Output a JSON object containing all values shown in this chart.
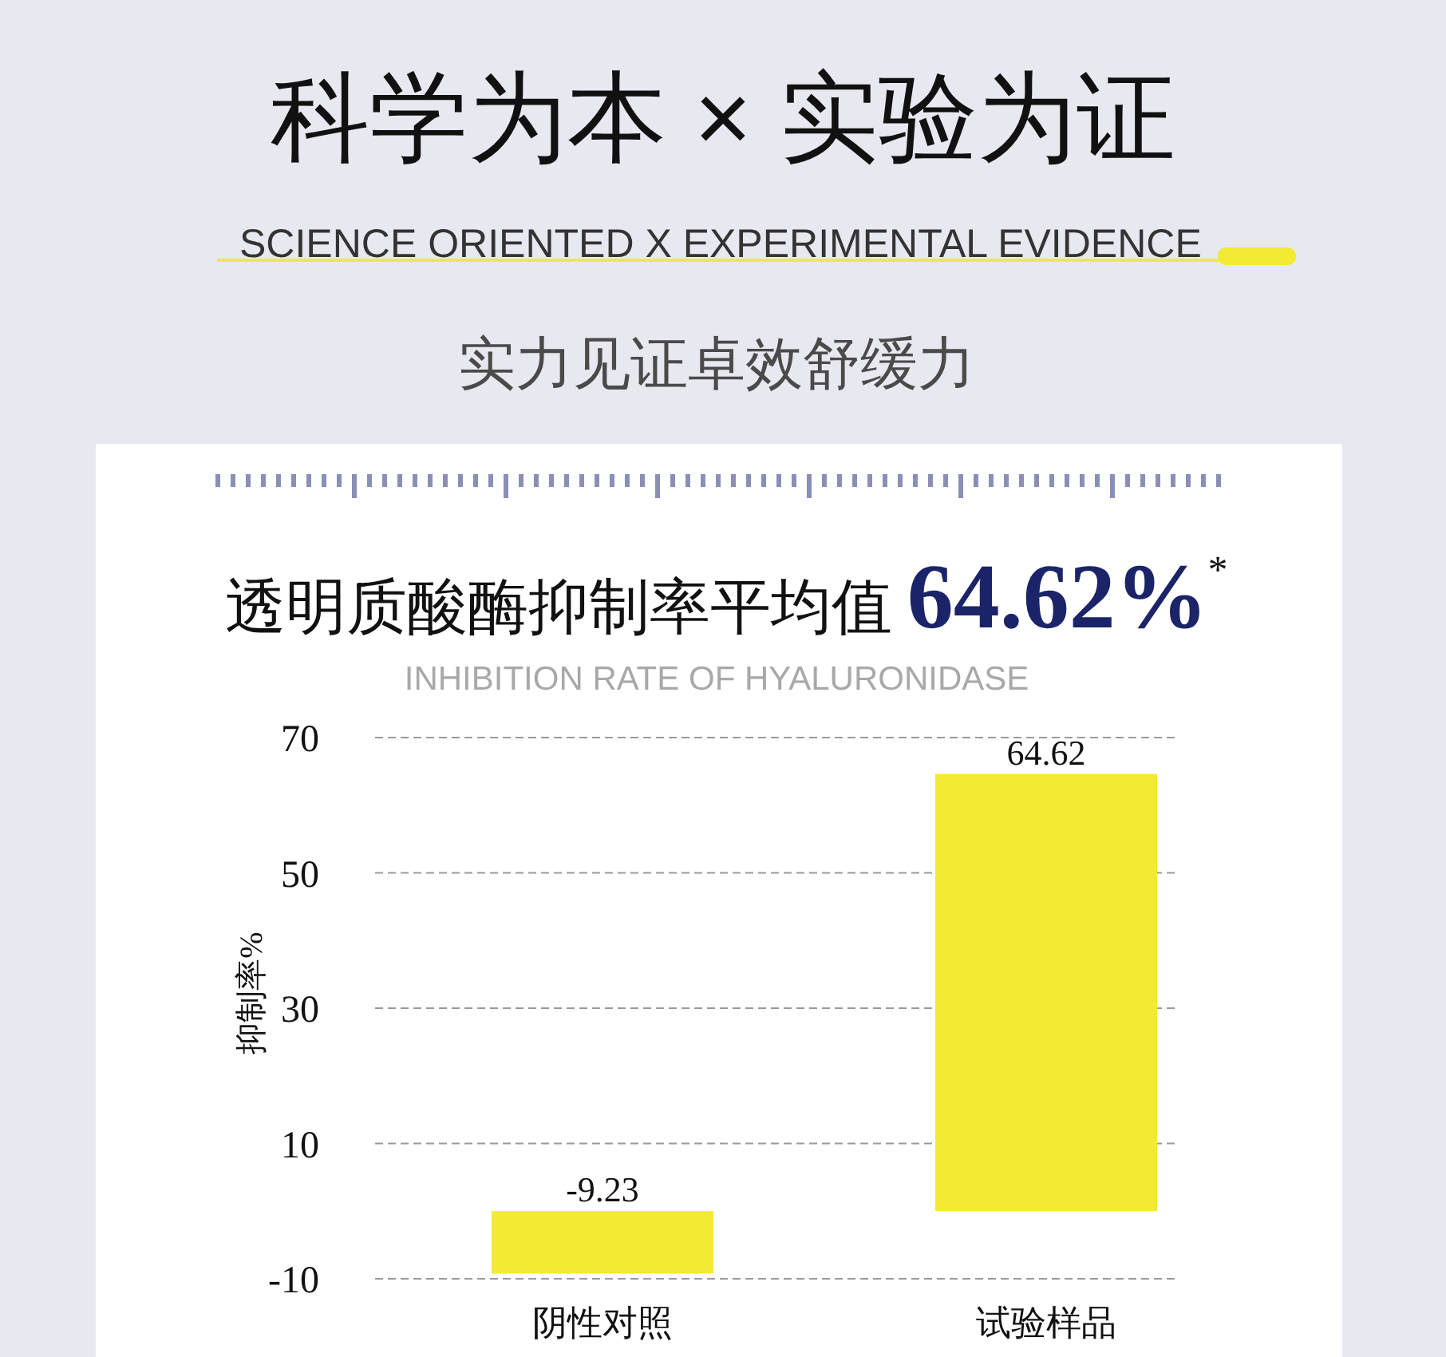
{
  "chart_data": {
    "type": "bar",
    "title": "科学为本 × 实验为证",
    "subtitle": "SCIENCE ORIENTED X EXPERIMENTAL EVIDENCE",
    "annotations": [
      "实力见证卓效舒缓力",
      "透明质酸酶抑制率平均值 **64.62%**$^{*}$",
      "INHIBITION RATE OF HYALURONIDASE"
    ],
    "ylabel": "抑制率%",
    "categories": [
      "阴性对照",
      "试验样品"
    ],
    "values": [
      -9.23,
      64.62
    ],
    "color": "#f3ea33",
    "ylim": [
      -10,
      70
    ],
    "yticks": [
      -10,
      10,
      30,
      50,
      70
    ],
    "grid": "y",
    "data_labels": true
  }
}
